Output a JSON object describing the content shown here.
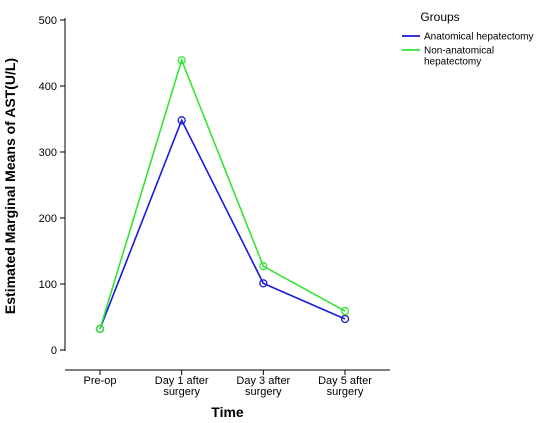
{
  "chart_data": {
    "type": "line",
    "xlabel": "Time",
    "ylabel": "Estimated Marginal Means of AST(U/L)",
    "categories": [
      [
        "Pre-op"
      ],
      [
        "Day 1 after",
        "surgery"
      ],
      [
        "Day 3 after",
        "surgery"
      ],
      [
        "Day 5 after",
        "surgery"
      ]
    ],
    "ylim": [
      0,
      500
    ],
    "yticks": [
      0,
      100,
      200,
      300,
      400,
      500
    ],
    "legend": {
      "title": "Groups",
      "position": "top-right"
    },
    "series": [
      {
        "name_lines": [
          "Anatomical hepatectomy"
        ],
        "color": "#1a1adb",
        "values": [
          32,
          348,
          101,
          47
        ]
      },
      {
        "name_lines": [
          "Non-anatomical",
          "hepatectomy"
        ],
        "color": "#33e633",
        "values": [
          32,
          439,
          127,
          59
        ]
      }
    ],
    "grid": false
  }
}
